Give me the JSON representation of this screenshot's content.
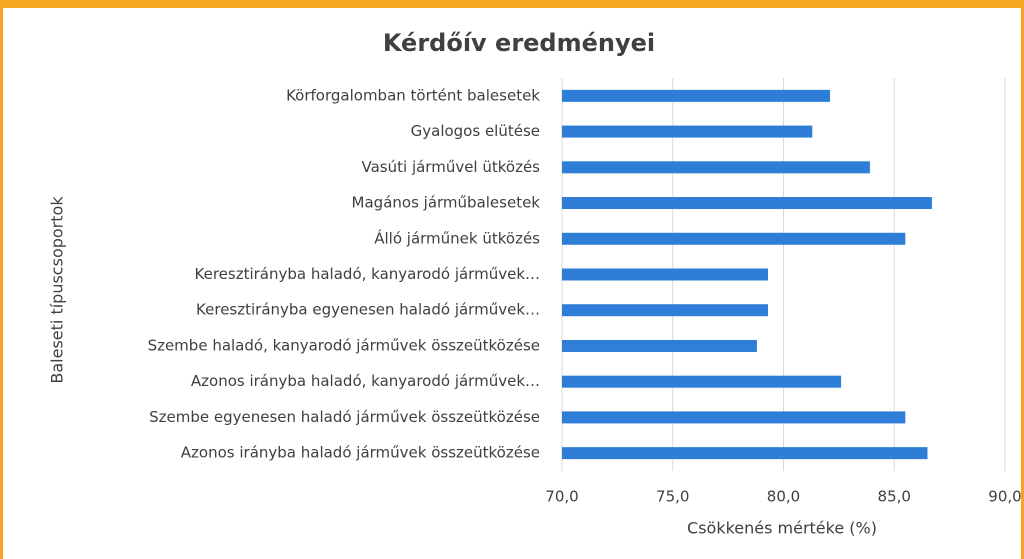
{
  "chart_data": {
    "type": "bar",
    "orientation": "horizontal",
    "title": "Kérdőív eredményei",
    "x_label": "Csökkenés mértéke (%)",
    "y_label": "Baleseti típuscsoportok",
    "categories": [
      "Körforgalomban történt balesetek",
      "Gyalogos elütése",
      "Vasúti járművel ütközés",
      "Magános járműbalesetek",
      "Álló járműnek ütközés",
      "Keresztirányba haladó, kanyarodó járművek…",
      "Keresztirányba egyenesen haladó járművek…",
      "Szembe haladó, kanyarodó járművek összeütközése",
      "Azonos irányba haladó, kanyarodó járművek…",
      "Szembe egyenesen haladó járművek összeütközése",
      "Azonos irányba haladó járművek összeütközése"
    ],
    "values": [
      82.1,
      81.3,
      83.9,
      86.7,
      85.5,
      79.3,
      79.3,
      78.8,
      82.6,
      85.5,
      86.5
    ],
    "color": "#2e7dd6",
    "xlim": [
      70,
      90
    ],
    "xticks": [
      {
        "value": 70,
        "label": "70,0"
      },
      {
        "value": 75,
        "label": "75,0"
      },
      {
        "value": 80,
        "label": "80,0"
      },
      {
        "value": 85,
        "label": "85,0"
      },
      {
        "value": 90,
        "label": "90,0"
      }
    ],
    "grid": true
  }
}
